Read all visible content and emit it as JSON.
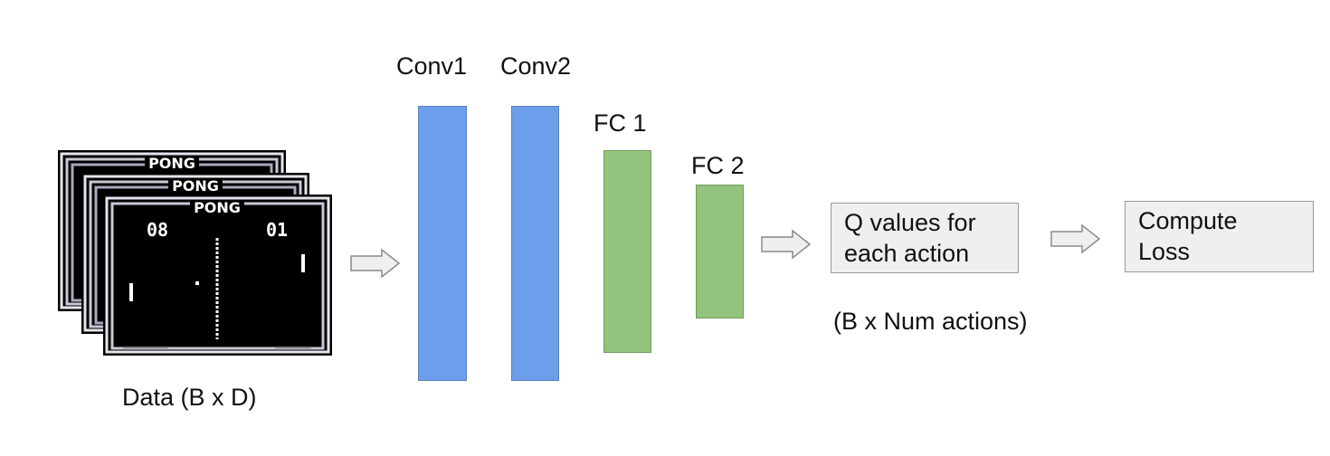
{
  "input": {
    "caption": "Data (B x D)",
    "frames": [
      {
        "title": "PONG",
        "score_left": "08",
        "score_right": "01"
      },
      {
        "title": "PONG",
        "score_left": "08",
        "score_right": "01"
      },
      {
        "title": "PONG",
        "score_left": "08",
        "score_right": "01"
      }
    ]
  },
  "layers": {
    "conv1": "Conv1",
    "conv2": "Conv2",
    "fc1": "FC 1",
    "fc2": "FC 2"
  },
  "output": {
    "q_values": "Q values for\neach action",
    "shape": "(B x Num actions)",
    "loss": "Compute\nLoss"
  },
  "colors": {
    "conv": "#6d9eeb",
    "fc": "#93c47d",
    "box": "#efefef"
  }
}
